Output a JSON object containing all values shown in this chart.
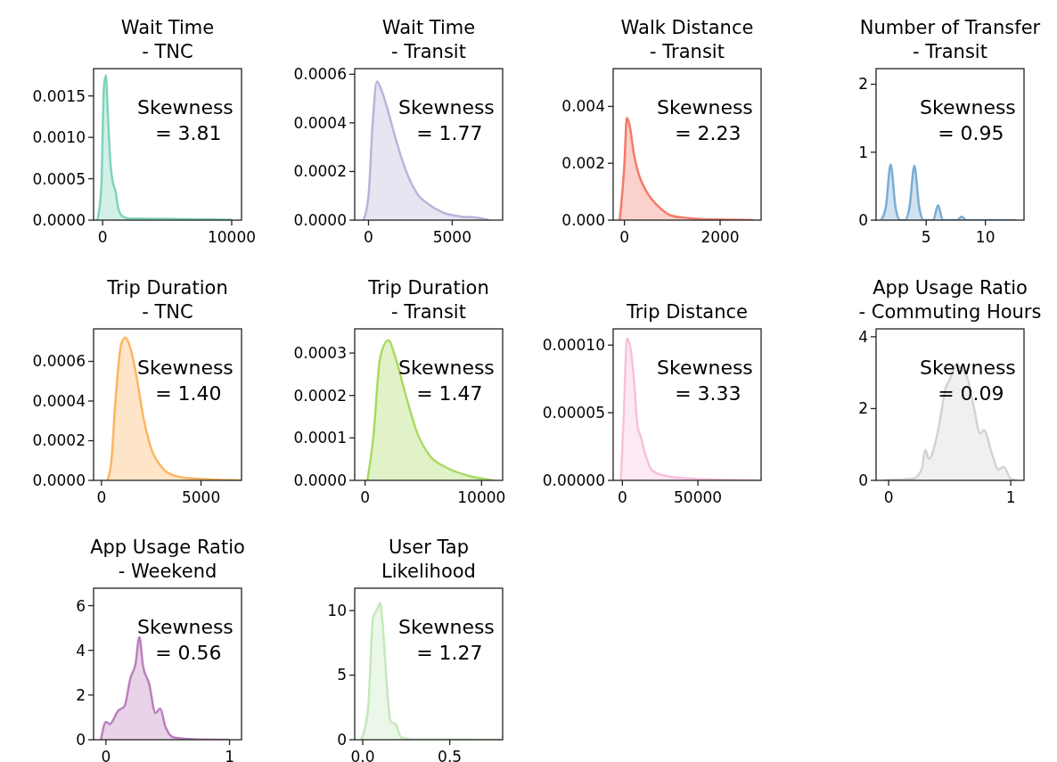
{
  "chart_data": [
    {
      "type": "area",
      "title": "Wait Time\n- TNC",
      "annotations": [
        "Skewness\n = 3.81"
      ],
      "xlim": [
        -700,
        10760
      ],
      "xticks": [
        0,
        10000
      ],
      "ylim": [
        0,
        0.00183
      ],
      "yticks": [
        {
          "value": 0,
          "label": "0.0000"
        },
        {
          "value": 0.0005,
          "label": "0.0005"
        },
        {
          "value": 0.001,
          "label": "0.0010"
        },
        {
          "value": 0.0015,
          "label": "0.0015"
        }
      ],
      "series": [
        {
          "color": "#7fd3bd",
          "x": [
            -400,
            -100,
            100,
            250,
            400,
            600,
            800,
            1000,
            1200,
            1500,
            2000,
            3000,
            5000,
            7000,
            10000
          ],
          "values": [
            0,
            0.0004,
            0.0016,
            0.00175,
            0.0013,
            0.0007,
            0.00045,
            0.00035,
            0.00015,
            5e-05,
            2e-05,
            2e-05,
            1.5e-05,
            1e-05,
            5e-06
          ]
        }
      ]
    },
    {
      "type": "area",
      "title": "Wait Time\n- Transit",
      "annotations": [
        "Skewness\n = 1.77"
      ],
      "xlim": [
        -826,
        8017
      ],
      "xticks": [
        0,
        5000
      ],
      "ylim": [
        0,
        0.000623
      ],
      "yticks": [
        {
          "value": 0,
          "label": "0.0000"
        },
        {
          "value": 0.0002,
          "label": "0.0002"
        },
        {
          "value": 0.0004,
          "label": "0.0004"
        },
        {
          "value": 0.0006,
          "label": "0.0006"
        }
      ],
      "series": [
        {
          "color": "#b8b5d9",
          "x": [
            -300,
            0,
            250,
            500,
            800,
            1200,
            1600,
            2000,
            2500,
            3000,
            3500,
            4500,
            5500,
            6500,
            7200
          ],
          "values": [
            0,
            0.0001,
            0.0004,
            0.00057,
            0.00053,
            0.00044,
            0.00034,
            0.00025,
            0.00016,
            0.0001,
            7e-05,
            3e-05,
            1.5e-05,
            1e-05,
            0
          ]
        }
      ]
    },
    {
      "type": "area",
      "title": "Walk Distance\n- Transit",
      "annotations": [
        "Skewness\n = 2.23"
      ],
      "xlim": [
        -236,
        2857
      ],
      "xticks": [
        0,
        2000
      ],
      "ylim": [
        0,
        0.00533
      ],
      "yticks": [
        {
          "value": 0,
          "label": "0.000"
        },
        {
          "value": 0.002,
          "label": "0.002"
        },
        {
          "value": 0.004,
          "label": "0.004"
        }
      ],
      "series": [
        {
          "color": "#f47a6b",
          "x": [
            -100,
            0,
            50,
            100,
            200,
            300,
            400,
            500,
            700,
            1000,
            1500,
            2000,
            2700
          ],
          "values": [
            0,
            0.002,
            0.0036,
            0.0034,
            0.0023,
            0.0016,
            0.0012,
            0.0009,
            0.0005,
            0.00015,
            5e-05,
            2e-05,
            0
          ]
        }
      ]
    },
    {
      "type": "area",
      "title": "Number of Transfer\n- Transit",
      "annotations": [
        "Skewness\n = 0.95"
      ],
      "xlim": [
        0.77,
        13.26
      ],
      "xticks": [
        5,
        10
      ],
      "ylim": [
        0,
        2.23
      ],
      "yticks": [
        0,
        1,
        2
      ],
      "series": [
        {
          "color": "#7aadd4",
          "x": [
            1.2,
            1.6,
            2,
            2.4,
            2.8,
            3.2,
            3.6,
            4,
            4.4,
            4.8,
            5.6,
            6,
            6.4,
            7.6,
            8,
            8.4,
            12.6
          ],
          "values": [
            0,
            0.2,
            0.82,
            0.2,
            0,
            0,
            0.2,
            0.8,
            0.2,
            0,
            0,
            0.22,
            0,
            0,
            0.05,
            0,
            0
          ]
        }
      ]
    },
    {
      "type": "area",
      "title": "Trip Duration\n- TNC",
      "annotations": [
        "Skewness\n = 1.40"
      ],
      "xlim": [
        -397,
        7034
      ],
      "xticks": [
        0,
        5000
      ],
      "ylim": [
        0,
        0.000764
      ],
      "yticks": [
        {
          "value": 0,
          "label": "0.0000"
        },
        {
          "value": 0.0002,
          "label": "0.0002"
        },
        {
          "value": 0.0004,
          "label": "0.0004"
        },
        {
          "value": 0.0006,
          "label": "0.0006"
        }
      ],
      "series": [
        {
          "color": "#fdb462",
          "x": [
            300,
            500,
            700,
            1000,
            1200,
            1500,
            1800,
            2100,
            2500,
            3000,
            3500,
            4500,
            7000
          ],
          "values": [
            0,
            0.0001,
            0.0004,
            0.00069,
            0.00072,
            0.00065,
            0.0005,
            0.00032,
            0.00016,
            7e-05,
            3e-05,
            1e-05,
            0
          ]
        }
      ]
    },
    {
      "type": "area",
      "title": "Trip Duration\n- Transit",
      "annotations": [
        "Skewness\n = 1.47"
      ],
      "xlim": [
        -890,
        11810
      ],
      "xticks": [
        0,
        10000
      ],
      "ylim": [
        0,
        0.000357
      ],
      "yticks": [
        {
          "value": 0,
          "label": "0.0000"
        },
        {
          "value": 0.0001,
          "label": "0.0001"
        },
        {
          "value": 0.0002,
          "label": "0.0002"
        },
        {
          "value": 0.0003,
          "label": "0.0003"
        }
      ],
      "series": [
        {
          "color": "#a9da62",
          "x": [
            200,
            700,
            1300,
            2000,
            2600,
            3500,
            4500,
            5500,
            7000,
            9000,
            11000
          ],
          "values": [
            0,
            0.0001,
            0.00029,
            0.00033,
            0.00029,
            0.0002,
            0.00011,
            6e-05,
            3e-05,
            1e-05,
            0
          ]
        }
      ]
    },
    {
      "type": "area",
      "title": "Trip Distance",
      "annotations": [
        "Skewness\n = 3.33"
      ],
      "xlim": [
        -6100,
        91860
      ],
      "xticks": [
        0,
        50000
      ],
      "ylim": [
        0,
        0.000112
      ],
      "yticks": [
        {
          "value": 0,
          "label": "0.00000"
        },
        {
          "value": 5e-05,
          "label": "0.00005"
        },
        {
          "value": 0.0001,
          "label": "0.00010"
        }
      ],
      "series": [
        {
          "color": "#f7c1dc",
          "x": [
            -1000,
            1000,
            3000,
            5000,
            8000,
            10000,
            12000,
            15000,
            20000,
            30000,
            50000,
            90000
          ],
          "values": [
            0,
            5e-05,
            0.000105,
            0.0001,
            7e-05,
            4e-05,
            3.3e-05,
            2e-05,
            7e-06,
            3e-06,
            1e-06,
            0
          ]
        }
      ]
    },
    {
      "type": "area",
      "title": "App Usage Ratio\n- Commuting Hours",
      "annotations": [
        "Skewness\n = 0.09"
      ],
      "xlim": [
        -0.103,
        1.109
      ],
      "xticks": [
        0,
        1
      ],
      "ylim": [
        0,
        4.22
      ],
      "yticks": [
        0,
        2,
        4
      ],
      "series": [
        {
          "color": "#d3d3d3",
          "x": [
            -0.05,
            0.2,
            0.27,
            0.3,
            0.33,
            0.4,
            0.47,
            0.5,
            0.55,
            0.6,
            0.65,
            0.7,
            0.75,
            0.78,
            0.85,
            0.9,
            0.94,
            1.0,
            1.05
          ],
          "values": [
            0,
            0.05,
            0.3,
            0.85,
            0.6,
            1.3,
            2.6,
            2.8,
            3.2,
            3.1,
            2.8,
            2.0,
            1.3,
            1.4,
            0.7,
            0.3,
            0.38,
            0.05,
            0
          ]
        }
      ]
    },
    {
      "type": "area",
      "title": "App Usage Ratio\n- Weekend",
      "annotations": [
        "Skewness\n = 0.56"
      ],
      "xlim": [
        -0.1,
        1.097
      ],
      "xticks": [
        0,
        1
      ],
      "ylim": [
        0,
        6.78
      ],
      "yticks": [
        0,
        2,
        4,
        6
      ],
      "series": [
        {
          "color": "#bc80bd",
          "x": [
            -0.04,
            0,
            0.03,
            0.1,
            0.15,
            0.2,
            0.24,
            0.27,
            0.3,
            0.35,
            0.4,
            0.44,
            0.48,
            0.55,
            0.7,
            1.0
          ],
          "values": [
            0,
            0.8,
            0.7,
            1.3,
            1.5,
            2.8,
            3.4,
            4.6,
            3.3,
            2.5,
            1.2,
            1.4,
            0.6,
            0.1,
            0.02,
            0
          ]
        }
      ]
    },
    {
      "type": "area",
      "title": "User Tap\nLikelihood",
      "annotations": [
        "Skewness\n = 1.27"
      ],
      "xlim": [
        -0.046,
        0.804
      ],
      "xticks": [
        {
          "value": 0,
          "label": "0.0"
        },
        0.5
      ],
      "ylim": [
        0,
        11.73
      ],
      "yticks": [
        0,
        5,
        10
      ],
      "series": [
        {
          "color": "#c5e8bd",
          "x": [
            -0.01,
            0.03,
            0.06,
            0.08,
            0.1,
            0.12,
            0.14,
            0.16,
            0.19,
            0.22,
            0.3,
            0.8
          ],
          "values": [
            0,
            2.3,
            9.5,
            10,
            10.6,
            8,
            4,
            1.4,
            1.2,
            0.2,
            0.02,
            0
          ]
        }
      ]
    }
  ]
}
